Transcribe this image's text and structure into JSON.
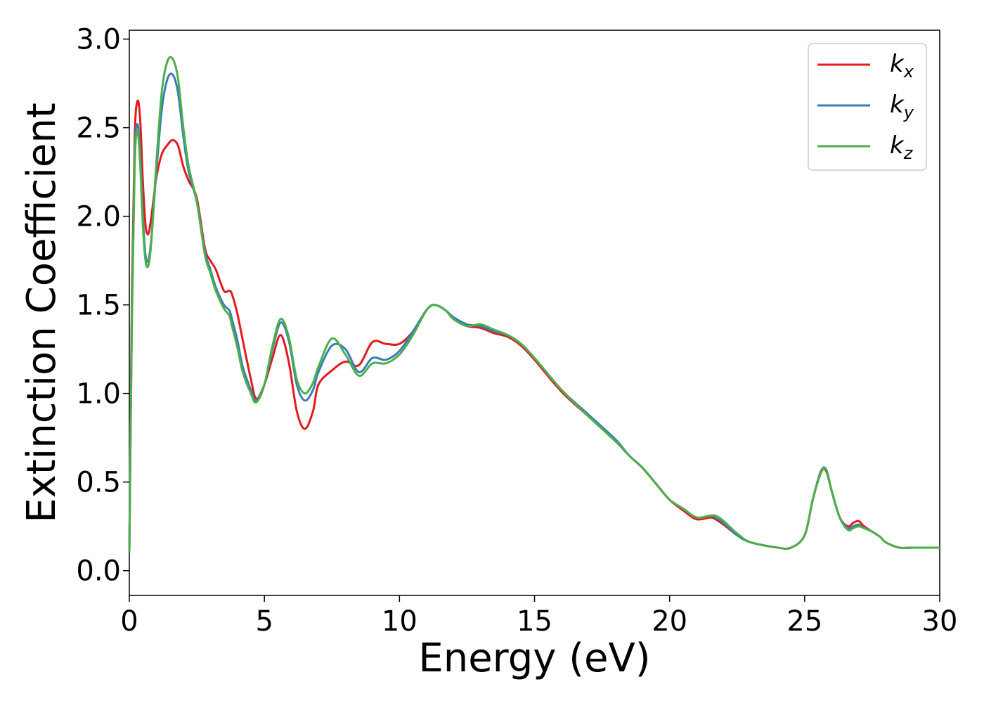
{
  "chart_data": {
    "type": "line",
    "xlabel": "Energy (eV)",
    "ylabel": "Extinction Coefficient",
    "xlim": [
      0,
      30
    ],
    "ylim": [
      -0.14,
      3.05
    ],
    "xticks": [
      0,
      5,
      10,
      15,
      20,
      25,
      30
    ],
    "xtick_labels": [
      "0",
      "5",
      "10",
      "15",
      "20",
      "25",
      "30"
    ],
    "yticks": [
      0.0,
      0.5,
      1.0,
      1.5,
      2.0,
      2.5,
      3.0
    ],
    "ytick_labels": [
      "0.0",
      "0.5",
      "1.0",
      "1.5",
      "2.0",
      "2.5",
      "3.0"
    ],
    "grid": false,
    "legend_position": "top-right",
    "series": [
      {
        "name": "k",
        "subscript": "x",
        "color": "#e41a1c",
        "x": [
          0,
          0.1,
          0.2,
          0.3,
          0.4,
          0.5,
          0.6,
          0.7,
          0.8,
          0.9,
          1.0,
          1.2,
          1.4,
          1.6,
          1.8,
          2.0,
          2.2,
          2.5,
          2.8,
          3.0,
          3.2,
          3.5,
          3.7,
          3.8,
          4.0,
          4.2,
          4.5,
          4.7,
          5.0,
          5.3,
          5.6,
          5.9,
          6.2,
          6.5,
          6.8,
          7.0,
          7.5,
          8.0,
          8.5,
          9.0,
          9.5,
          10.0,
          10.5,
          11.0,
          11.3,
          11.7,
          12.0,
          12.5,
          13.0,
          13.5,
          14.0,
          14.5,
          15.0,
          16.0,
          17.0,
          18.0,
          18.5,
          19.0,
          19.5,
          20.0,
          20.5,
          21.0,
          21.5,
          21.7,
          22.0,
          22.5,
          23.0,
          24.0,
          24.5,
          25.0,
          25.3,
          25.6,
          25.8,
          26.0,
          26.3,
          26.6,
          26.8,
          27.0,
          27.2,
          27.5,
          27.8,
          28.0,
          28.5,
          29.0,
          29.5,
          30.0
        ],
        "values": [
          0.1,
          1.6,
          2.45,
          2.65,
          2.55,
          2.2,
          1.95,
          1.9,
          1.98,
          2.1,
          2.22,
          2.35,
          2.4,
          2.43,
          2.4,
          2.28,
          2.2,
          2.1,
          1.82,
          1.75,
          1.7,
          1.58,
          1.58,
          1.56,
          1.45,
          1.3,
          1.08,
          0.97,
          1.05,
          1.2,
          1.33,
          1.18,
          0.9,
          0.8,
          0.9,
          1.05,
          1.13,
          1.18,
          1.16,
          1.29,
          1.28,
          1.28,
          1.35,
          1.47,
          1.5,
          1.47,
          1.42,
          1.38,
          1.37,
          1.34,
          1.32,
          1.27,
          1.19,
          1.01,
          0.87,
          0.73,
          0.65,
          0.58,
          0.49,
          0.4,
          0.34,
          0.29,
          0.3,
          0.29,
          0.26,
          0.2,
          0.16,
          0.13,
          0.13,
          0.2,
          0.4,
          0.56,
          0.56,
          0.45,
          0.3,
          0.25,
          0.27,
          0.28,
          0.25,
          0.22,
          0.19,
          0.16,
          0.13,
          0.13,
          0.13,
          0.13
        ]
      },
      {
        "name": "k",
        "subscript": "y",
        "color": "#377eb8",
        "x": [
          0,
          0.1,
          0.2,
          0.3,
          0.4,
          0.5,
          0.6,
          0.7,
          0.8,
          0.9,
          1.0,
          1.2,
          1.4,
          1.6,
          1.8,
          2.0,
          2.2,
          2.5,
          2.8,
          3.0,
          3.2,
          3.5,
          3.7,
          3.8,
          4.0,
          4.2,
          4.5,
          4.7,
          5.0,
          5.3,
          5.6,
          5.9,
          6.2,
          6.5,
          6.8,
          7.0,
          7.5,
          8.0,
          8.5,
          9.0,
          9.5,
          10.0,
          10.5,
          11.0,
          11.3,
          11.7,
          12.0,
          12.5,
          13.0,
          13.5,
          14.0,
          14.5,
          15.0,
          16.0,
          17.0,
          18.0,
          18.5,
          19.0,
          19.5,
          20.0,
          20.5,
          21.0,
          21.5,
          21.7,
          22.0,
          22.5,
          23.0,
          24.0,
          24.5,
          25.0,
          25.3,
          25.6,
          25.8,
          26.0,
          26.3,
          26.6,
          26.8,
          27.0,
          27.2,
          27.5,
          27.8,
          28.0,
          28.5,
          29.0,
          29.5,
          30.0
        ],
        "values": [
          0.1,
          1.5,
          2.35,
          2.52,
          2.35,
          2.0,
          1.78,
          1.75,
          1.85,
          2.05,
          2.25,
          2.6,
          2.77,
          2.8,
          2.7,
          2.45,
          2.25,
          2.08,
          1.8,
          1.7,
          1.6,
          1.5,
          1.47,
          1.42,
          1.3,
          1.15,
          1.02,
          0.96,
          1.05,
          1.25,
          1.4,
          1.3,
          1.05,
          0.96,
          1.02,
          1.12,
          1.27,
          1.25,
          1.12,
          1.2,
          1.19,
          1.24,
          1.35,
          1.47,
          1.5,
          1.47,
          1.43,
          1.39,
          1.38,
          1.35,
          1.33,
          1.28,
          1.2,
          1.02,
          0.88,
          0.74,
          0.65,
          0.58,
          0.49,
          0.4,
          0.35,
          0.3,
          0.31,
          0.3,
          0.27,
          0.2,
          0.16,
          0.13,
          0.13,
          0.2,
          0.4,
          0.56,
          0.57,
          0.45,
          0.3,
          0.24,
          0.25,
          0.26,
          0.24,
          0.22,
          0.19,
          0.16,
          0.13,
          0.13,
          0.13,
          0.13
        ]
      },
      {
        "name": "k",
        "subscript": "z",
        "color": "#4daf4a",
        "x": [
          0,
          0.1,
          0.2,
          0.3,
          0.4,
          0.5,
          0.6,
          0.7,
          0.8,
          0.9,
          1.0,
          1.2,
          1.4,
          1.6,
          1.8,
          2.0,
          2.2,
          2.5,
          2.8,
          3.0,
          3.2,
          3.5,
          3.7,
          3.8,
          4.0,
          4.2,
          4.5,
          4.7,
          5.0,
          5.3,
          5.6,
          5.9,
          6.2,
          6.5,
          6.8,
          7.0,
          7.5,
          8.0,
          8.5,
          9.0,
          9.5,
          10.0,
          10.5,
          11.0,
          11.3,
          11.7,
          12.0,
          12.5,
          13.0,
          13.5,
          14.0,
          14.5,
          15.0,
          16.0,
          17.0,
          18.0,
          18.5,
          19.0,
          19.5,
          20.0,
          20.5,
          21.0,
          21.5,
          21.7,
          22.0,
          22.5,
          23.0,
          24.0,
          24.5,
          25.0,
          25.3,
          25.6,
          25.8,
          26.0,
          26.3,
          26.6,
          26.8,
          27.0,
          27.2,
          27.5,
          27.8,
          28.0,
          28.5,
          29.0,
          29.5,
          30.0
        ],
        "values": [
          0.1,
          1.45,
          2.3,
          2.48,
          2.3,
          1.95,
          1.75,
          1.72,
          1.83,
          2.05,
          2.3,
          2.7,
          2.87,
          2.89,
          2.78,
          2.5,
          2.28,
          2.08,
          1.78,
          1.68,
          1.58,
          1.48,
          1.44,
          1.38,
          1.26,
          1.12,
          1.0,
          0.95,
          1.05,
          1.27,
          1.42,
          1.32,
          1.08,
          1.0,
          1.06,
          1.15,
          1.31,
          1.22,
          1.1,
          1.17,
          1.17,
          1.22,
          1.33,
          1.47,
          1.5,
          1.47,
          1.42,
          1.38,
          1.39,
          1.36,
          1.33,
          1.28,
          1.2,
          1.02,
          0.87,
          0.73,
          0.65,
          0.58,
          0.49,
          0.4,
          0.35,
          0.3,
          0.31,
          0.31,
          0.28,
          0.21,
          0.16,
          0.13,
          0.13,
          0.2,
          0.4,
          0.55,
          0.57,
          0.45,
          0.3,
          0.23,
          0.24,
          0.25,
          0.24,
          0.22,
          0.19,
          0.16,
          0.13,
          0.13,
          0.13,
          0.13
        ]
      }
    ]
  }
}
